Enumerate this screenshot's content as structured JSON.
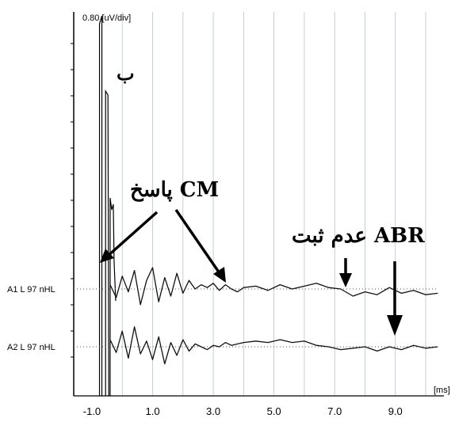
{
  "chart_data": {
    "type": "line",
    "y_scale_label": "0.80 [uV/div]",
    "x_unit_label": "[ms]",
    "x_ticks": [
      "-1.0",
      "1.0",
      "3.0",
      "5.0",
      "7.0",
      "9.0"
    ],
    "x_tick_values": [
      -1,
      1,
      3,
      5,
      7,
      9
    ],
    "xlim": [
      -1.6,
      10.6
    ],
    "grid": "vertical lines every 1 ms",
    "series": [
      {
        "name": "A1 L 97 nHL",
        "x": [
          -0.4,
          -0.2,
          0.0,
          0.2,
          0.4,
          0.6,
          0.8,
          1.0,
          1.2,
          1.4,
          1.6,
          1.8,
          2.0,
          2.2,
          2.4,
          2.6,
          2.8,
          3.0,
          3.2,
          3.4,
          3.6,
          3.8,
          4.0,
          4.4,
          4.8,
          5.2,
          5.6,
          6.0,
          6.4,
          6.8,
          7.2,
          7.6,
          8.0,
          8.4,
          8.8,
          9.2,
          9.6,
          10.0,
          10.4
        ],
        "values": [
          0.3,
          -0.6,
          0.9,
          -0.2,
          1.3,
          -1.1,
          0.6,
          1.5,
          -0.9,
          0.8,
          -0.5,
          1.1,
          -0.3,
          0.6,
          0.0,
          0.3,
          0.1,
          0.4,
          -0.1,
          0.3,
          0.0,
          -0.2,
          0.1,
          0.2,
          -0.1,
          0.3,
          0.0,
          0.2,
          0.4,
          0.1,
          0.0,
          -0.5,
          -0.2,
          -0.4,
          0.1,
          -0.3,
          -0.1,
          -0.4,
          -0.3
        ]
      },
      {
        "name": "A2 L 97 nHL",
        "x": [
          -0.4,
          -0.2,
          0.0,
          0.2,
          0.4,
          0.6,
          0.8,
          1.0,
          1.2,
          1.4,
          1.6,
          1.8,
          2.0,
          2.2,
          2.4,
          2.6,
          2.8,
          3.0,
          3.2,
          3.4,
          3.6,
          3.8,
          4.0,
          4.4,
          4.8,
          5.2,
          5.6,
          6.0,
          6.4,
          6.8,
          7.2,
          7.6,
          8.0,
          8.4,
          8.8,
          9.2,
          9.6,
          10.0,
          10.4
        ],
        "values": [
          0.5,
          -0.4,
          1.1,
          -0.8,
          1.4,
          -0.5,
          0.4,
          -0.9,
          0.7,
          -1.2,
          0.3,
          -0.6,
          0.5,
          -0.3,
          0.2,
          0.0,
          -0.2,
          0.1,
          0.0,
          0.3,
          0.1,
          0.2,
          0.3,
          0.4,
          0.3,
          0.5,
          0.3,
          0.4,
          0.1,
          0.0,
          -0.2,
          -0.1,
          0.0,
          -0.3,
          0.0,
          -0.2,
          0.1,
          -0.1,
          0.0
        ]
      }
    ],
    "annotations": [
      {
        "text": "ب"
      },
      {
        "text": "پاسخ CM"
      },
      {
        "text": "عدم ثبت ABR"
      }
    ]
  }
}
